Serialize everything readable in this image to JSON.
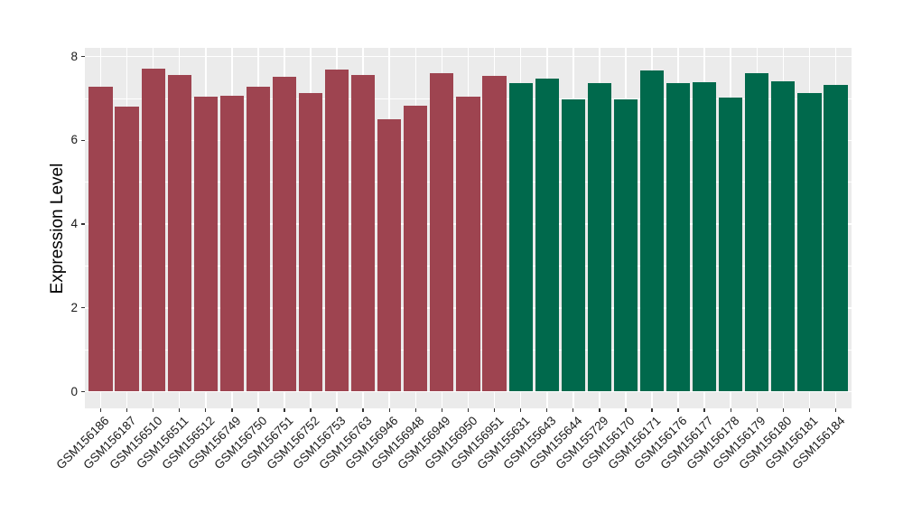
{
  "figure": {
    "background": "#FFFFFF",
    "panel_background": "#EBEBEB",
    "gridline_color": "#FFFFFF",
    "tick_mark_color": "#333333",
    "axis_text_color": "#1A1A1A",
    "axis_title_color": "#000000"
  },
  "chart_data": {
    "type": "bar",
    "title": "",
    "xlabel": "",
    "ylabel": "Expression Level",
    "ylim": [
      0,
      8.2
    ],
    "yticks": [
      0,
      2,
      4,
      6,
      8
    ],
    "grid": "on",
    "legend": "none",
    "x_label_rotation_deg": 45,
    "categories": [
      "GSM156186",
      "GSM156187",
      "GSM156510",
      "GSM156511",
      "GSM156512",
      "GSM156749",
      "GSM156750",
      "GSM156751",
      "GSM156752",
      "GSM156753",
      "GSM156763",
      "GSM156946",
      "GSM156948",
      "GSM156949",
      "GSM156950",
      "GSM156951",
      "GSM155631",
      "GSM155643",
      "GSM155644",
      "GSM155729",
      "GSM156170",
      "GSM156171",
      "GSM156176",
      "GSM156177",
      "GSM156178",
      "GSM156179",
      "GSM156180",
      "GSM156181",
      "GSM156184"
    ],
    "values": [
      7.29,
      6.81,
      7.72,
      7.56,
      7.05,
      7.07,
      7.29,
      7.52,
      7.14,
      7.7,
      7.56,
      6.51,
      6.83,
      7.61,
      7.05,
      7.53,
      7.37,
      7.48,
      6.98,
      7.36,
      6.98,
      7.66,
      7.36,
      7.4,
      7.02,
      7.61,
      7.41,
      7.12,
      7.32
    ],
    "bar_groups": [
      "maroon",
      "maroon",
      "maroon",
      "maroon",
      "maroon",
      "maroon",
      "maroon",
      "maroon",
      "maroon",
      "maroon",
      "maroon",
      "maroon",
      "maroon",
      "maroon",
      "maroon",
      "maroon",
      "green",
      "green",
      "green",
      "green",
      "green",
      "green",
      "green",
      "green",
      "green",
      "green",
      "green",
      "green",
      "green"
    ],
    "group_colors": {
      "maroon": "#9E4450",
      "green": "#00694C"
    }
  }
}
